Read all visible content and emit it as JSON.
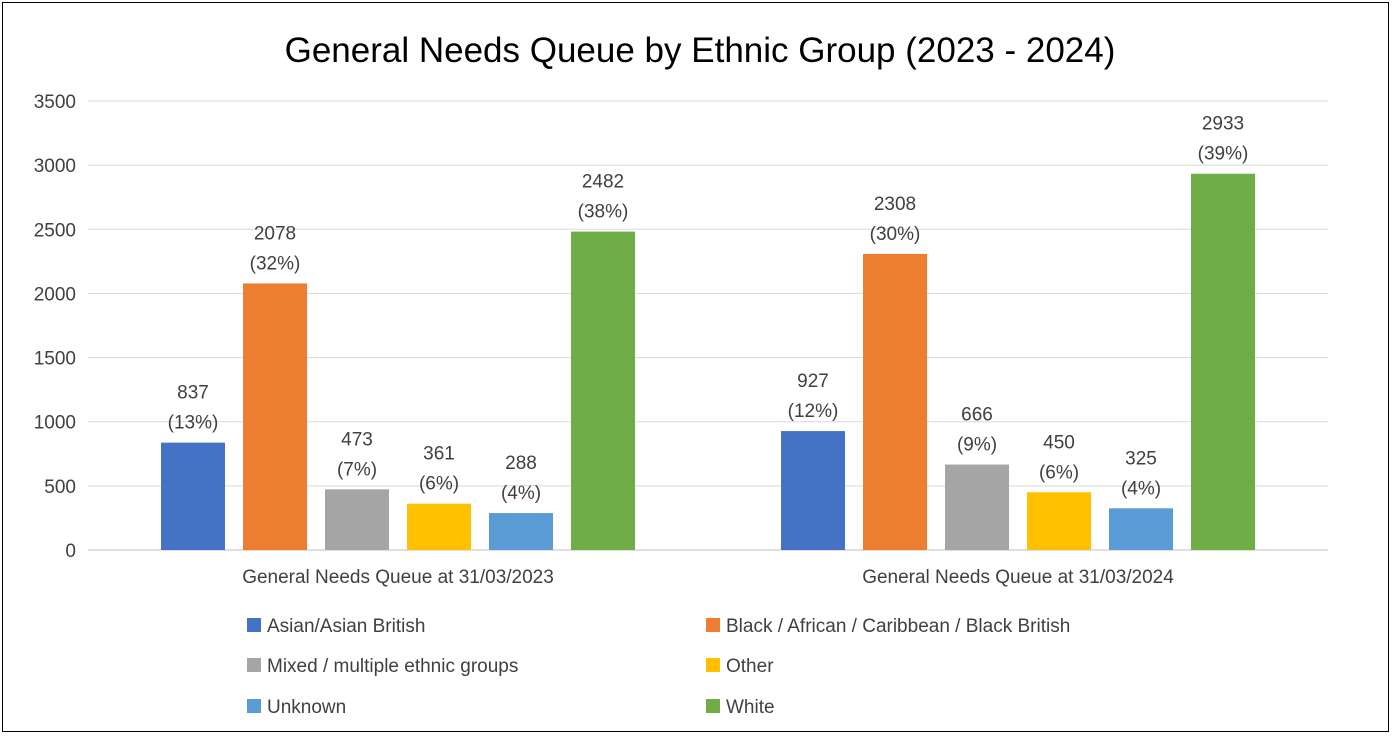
{
  "chart_data": {
    "type": "bar",
    "title": "General Needs Queue by Ethnic Group (2023 - 2024)",
    "xlabel": "",
    "ylabel": "",
    "ylim": [
      0,
      3500
    ],
    "yticks": [
      0,
      500,
      1000,
      1500,
      2000,
      2500,
      3000,
      3500
    ],
    "grid": true,
    "legend_position": "bottom",
    "categories": [
      "General Needs Queue at 31/03/2023",
      "General Needs Queue at 31/03/2024"
    ],
    "series": [
      {
        "name": "Asian/Asian British",
        "color": "#4472c4",
        "values": [
          837,
          927
        ],
        "percents": [
          "(13%)",
          "(12%)"
        ]
      },
      {
        "name": "Black / African / Caribbean / Black British",
        "color": "#ed7d31",
        "values": [
          2078,
          2308
        ],
        "percents": [
          "(32%)",
          "(30%)"
        ]
      },
      {
        "name": "Mixed / multiple ethnic groups",
        "color": "#a5a5a5",
        "values": [
          473,
          666
        ],
        "percents": [
          "(7%)",
          "(9%)"
        ]
      },
      {
        "name": "Other",
        "color": "#ffc000",
        "values": [
          361,
          450
        ],
        "percents": [
          "(6%)",
          "(6%)"
        ]
      },
      {
        "name": "Unknown",
        "color": "#5b9bd5",
        "values": [
          288,
          325
        ],
        "percents": [
          "(4%)",
          "(4%)"
        ]
      },
      {
        "name": "White",
        "color": "#70ad47",
        "values": [
          2482,
          2933
        ],
        "percents": [
          "(38%)",
          "(39%)"
        ]
      }
    ]
  }
}
